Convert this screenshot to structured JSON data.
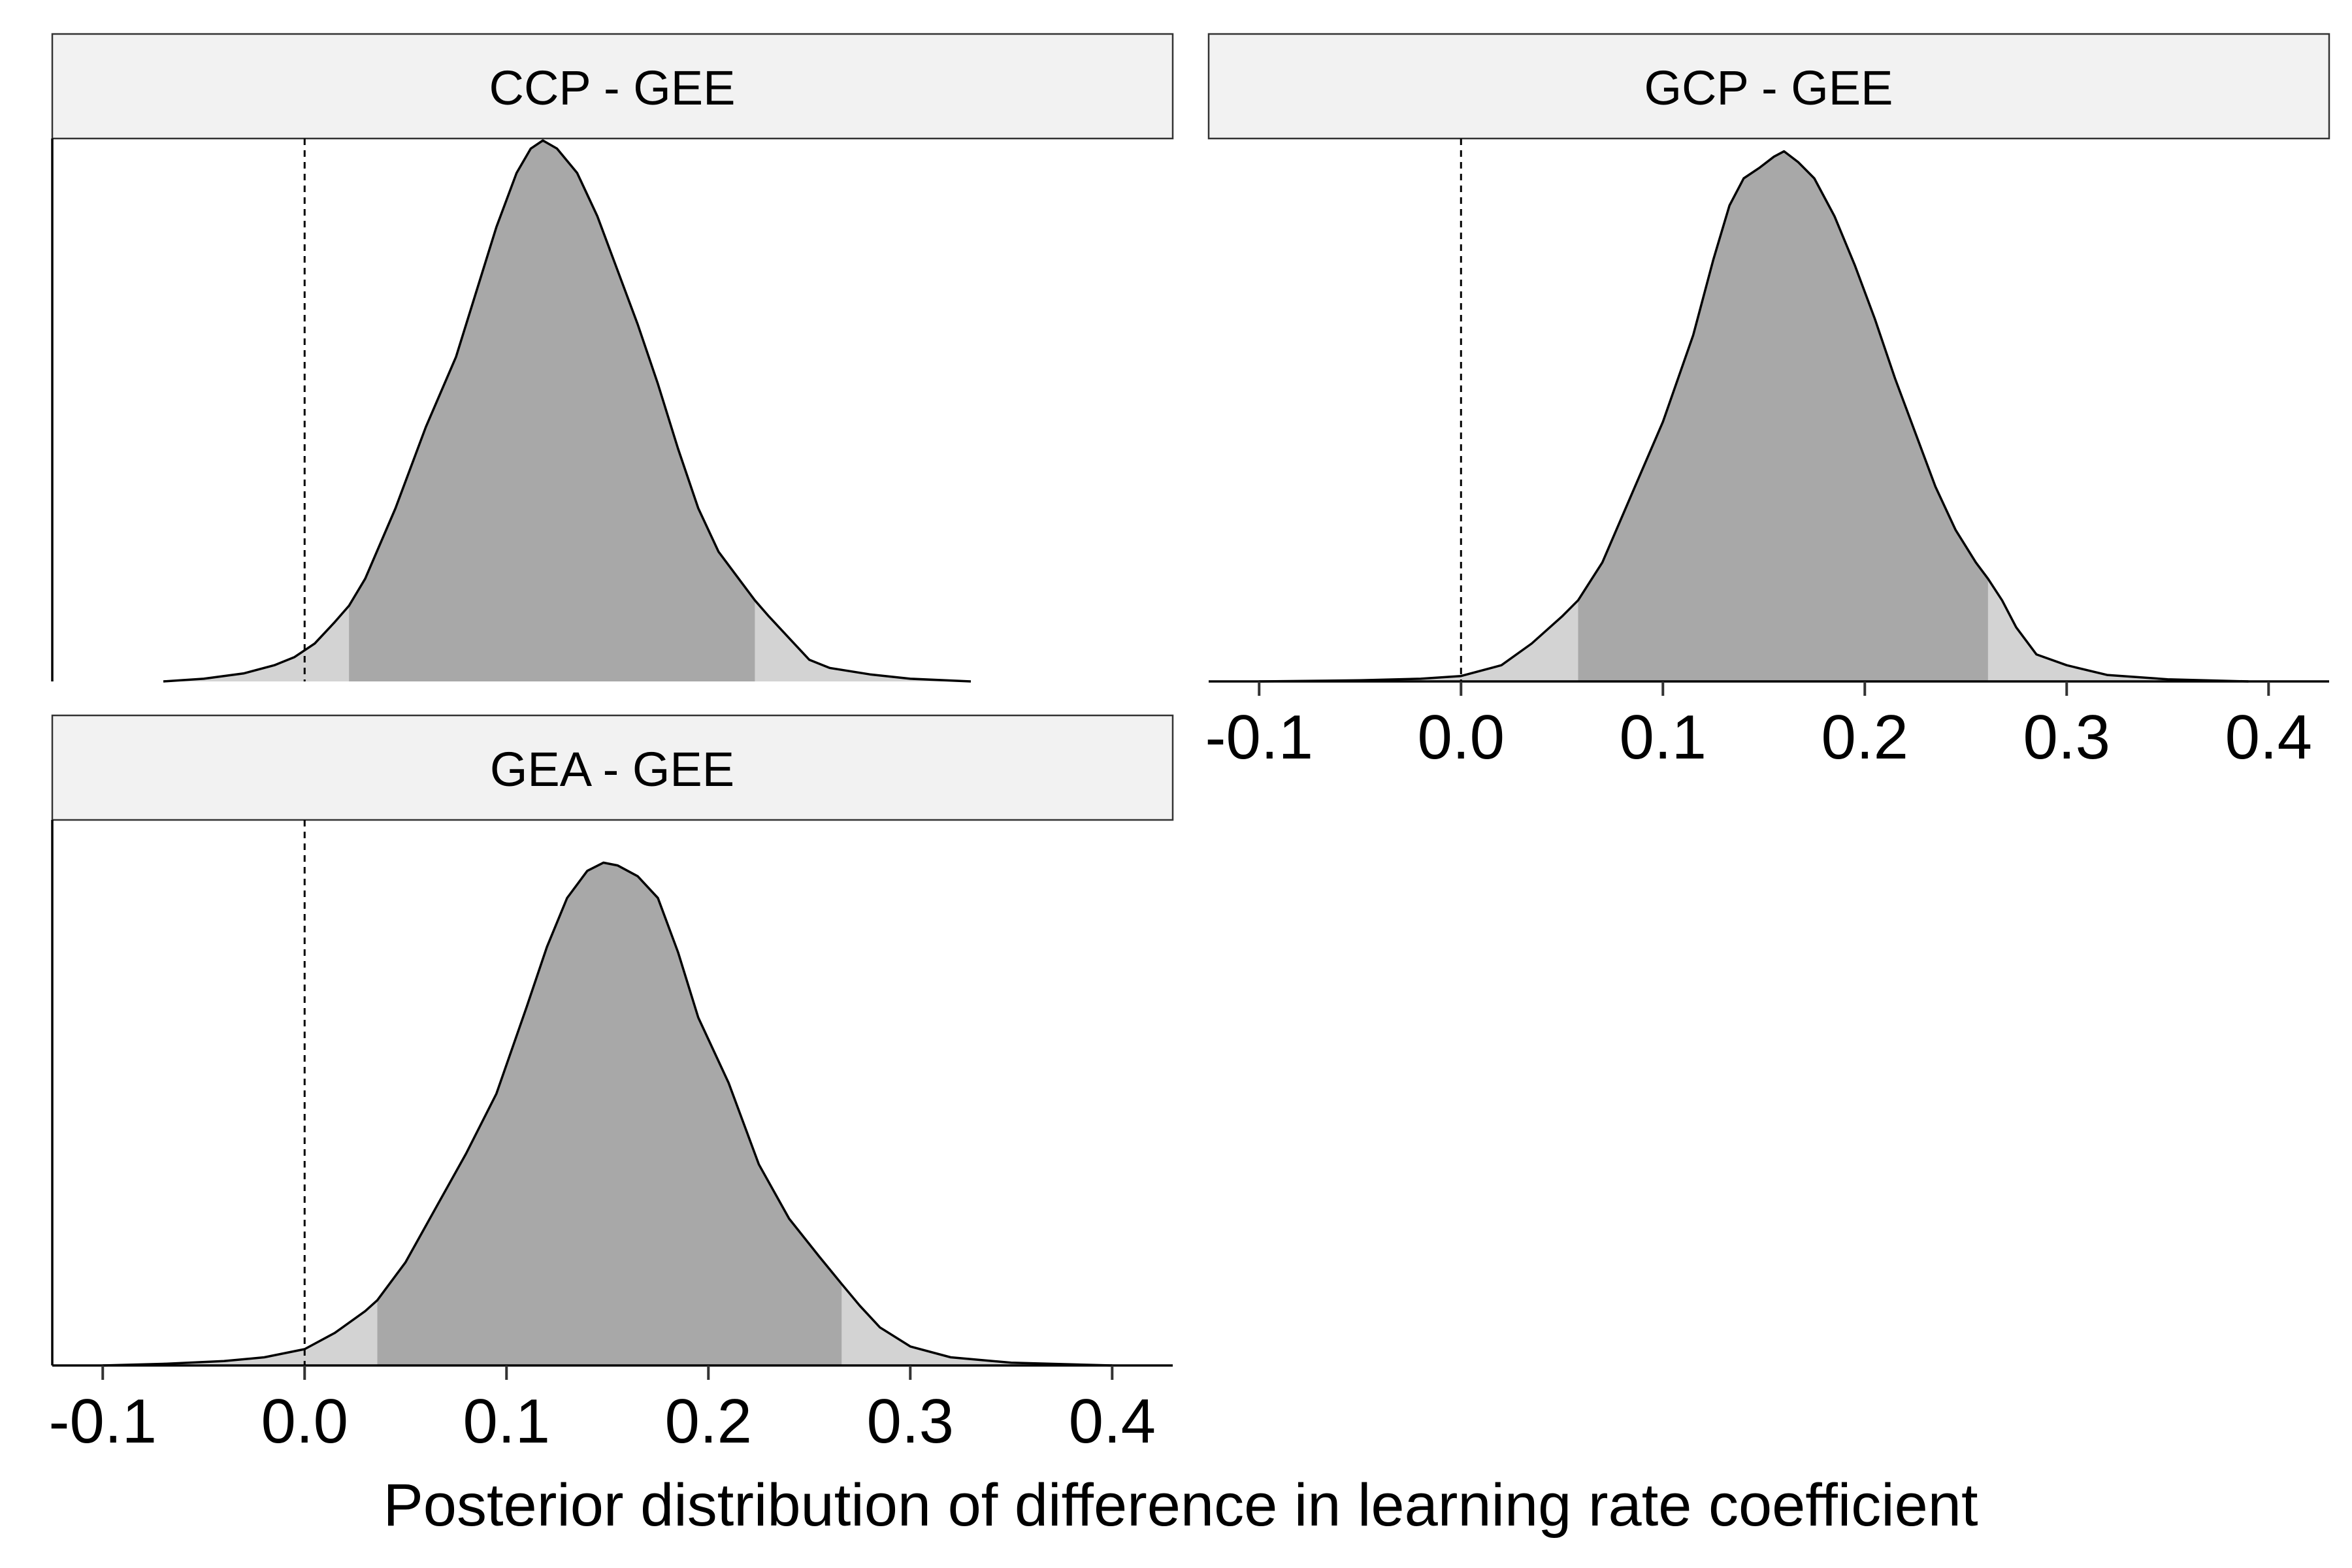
{
  "colors": {
    "background": "#ffffff",
    "strip_fill": "#f2f2f2",
    "tail_fill": "#d3d3d3",
    "interval_fill": "#a8a8a8",
    "outline": "#000000"
  },
  "chart_data": {
    "type": "area",
    "xlabel": "Posterior distribution of difference in learning rate coefficient",
    "xlim": [
      -0.125,
      0.43
    ],
    "x_ticks": [
      -0.1,
      0.0,
      0.1,
      0.2,
      0.3,
      0.4
    ],
    "x_tick_labels": [
      "-0.1",
      "0.0",
      "0.1",
      "0.2",
      "0.3",
      "0.4"
    ],
    "reference_line_x": 0.0,
    "legend": "none",
    "grid": false,
    "panels": [
      {
        "id": "ccp",
        "title": "CCP - GEE",
        "interval": [
          0.022,
          0.223
        ],
        "density": [
          [
            -0.07,
            0
          ],
          [
            -0.05,
            0.005
          ],
          [
            -0.03,
            0.015
          ],
          [
            -0.015,
            0.03
          ],
          [
            -0.005,
            0.045
          ],
          [
            0.005,
            0.07
          ],
          [
            0.015,
            0.11
          ],
          [
            0.022,
            0.14
          ],
          [
            0.03,
            0.19
          ],
          [
            0.045,
            0.32
          ],
          [
            0.06,
            0.47
          ],
          [
            0.075,
            0.6
          ],
          [
            0.085,
            0.72
          ],
          [
            0.095,
            0.84
          ],
          [
            0.105,
            0.94
          ],
          [
            0.112,
            0.985
          ],
          [
            0.118,
            1.0
          ],
          [
            0.125,
            0.985
          ],
          [
            0.135,
            0.94
          ],
          [
            0.145,
            0.86
          ],
          [
            0.155,
            0.76
          ],
          [
            0.165,
            0.66
          ],
          [
            0.175,
            0.55
          ],
          [
            0.185,
            0.43
          ],
          [
            0.195,
            0.32
          ],
          [
            0.205,
            0.24
          ],
          [
            0.215,
            0.19
          ],
          [
            0.223,
            0.15
          ],
          [
            0.23,
            0.12
          ],
          [
            0.24,
            0.08
          ],
          [
            0.25,
            0.04
          ],
          [
            0.26,
            0.025
          ],
          [
            0.28,
            0.013
          ],
          [
            0.3,
            0.005
          ],
          [
            0.33,
            0
          ]
        ]
      },
      {
        "id": "gcp",
        "title": "GCP - GEE",
        "interval": [
          0.058,
          0.261
        ],
        "density": [
          [
            -0.1,
            0
          ],
          [
            -0.05,
            0.002
          ],
          [
            -0.02,
            0.005
          ],
          [
            0.0,
            0.01
          ],
          [
            0.02,
            0.03
          ],
          [
            0.035,
            0.07
          ],
          [
            0.05,
            0.12
          ],
          [
            0.058,
            0.15
          ],
          [
            0.07,
            0.22
          ],
          [
            0.085,
            0.35
          ],
          [
            0.1,
            0.48
          ],
          [
            0.115,
            0.64
          ],
          [
            0.125,
            0.78
          ],
          [
            0.133,
            0.88
          ],
          [
            0.14,
            0.93
          ],
          [
            0.148,
            0.95
          ],
          [
            0.155,
            0.97
          ],
          [
            0.16,
            0.98
          ],
          [
            0.167,
            0.96
          ],
          [
            0.175,
            0.93
          ],
          [
            0.185,
            0.86
          ],
          [
            0.195,
            0.77
          ],
          [
            0.205,
            0.67
          ],
          [
            0.215,
            0.56
          ],
          [
            0.225,
            0.46
          ],
          [
            0.235,
            0.36
          ],
          [
            0.245,
            0.28
          ],
          [
            0.255,
            0.22
          ],
          [
            0.261,
            0.19
          ],
          [
            0.268,
            0.15
          ],
          [
            0.275,
            0.1
          ],
          [
            0.285,
            0.05
          ],
          [
            0.3,
            0.03
          ],
          [
            0.32,
            0.012
          ],
          [
            0.35,
            0.004
          ],
          [
            0.39,
            0
          ]
        ]
      },
      {
        "id": "gea",
        "title": "GEA - GEE",
        "interval": [
          0.036,
          0.266
        ],
        "density": [
          [
            -0.1,
            0
          ],
          [
            -0.07,
            0.003
          ],
          [
            -0.04,
            0.008
          ],
          [
            -0.02,
            0.015
          ],
          [
            0.0,
            0.03
          ],
          [
            0.015,
            0.06
          ],
          [
            0.03,
            0.1
          ],
          [
            0.036,
            0.12
          ],
          [
            0.05,
            0.19
          ],
          [
            0.065,
            0.29
          ],
          [
            0.08,
            0.39
          ],
          [
            0.095,
            0.5
          ],
          [
            0.11,
            0.66
          ],
          [
            0.12,
            0.77
          ],
          [
            0.13,
            0.86
          ],
          [
            0.14,
            0.91
          ],
          [
            0.148,
            0.925
          ],
          [
            0.155,
            0.92
          ],
          [
            0.165,
            0.9
          ],
          [
            0.175,
            0.86
          ],
          [
            0.185,
            0.76
          ],
          [
            0.195,
            0.64
          ],
          [
            0.21,
            0.52
          ],
          [
            0.225,
            0.37
          ],
          [
            0.24,
            0.27
          ],
          [
            0.255,
            0.2
          ],
          [
            0.266,
            0.15
          ],
          [
            0.275,
            0.11
          ],
          [
            0.285,
            0.07
          ],
          [
            0.3,
            0.035
          ],
          [
            0.32,
            0.015
          ],
          [
            0.35,
            0.005
          ],
          [
            0.4,
            0
          ]
        ]
      }
    ]
  }
}
